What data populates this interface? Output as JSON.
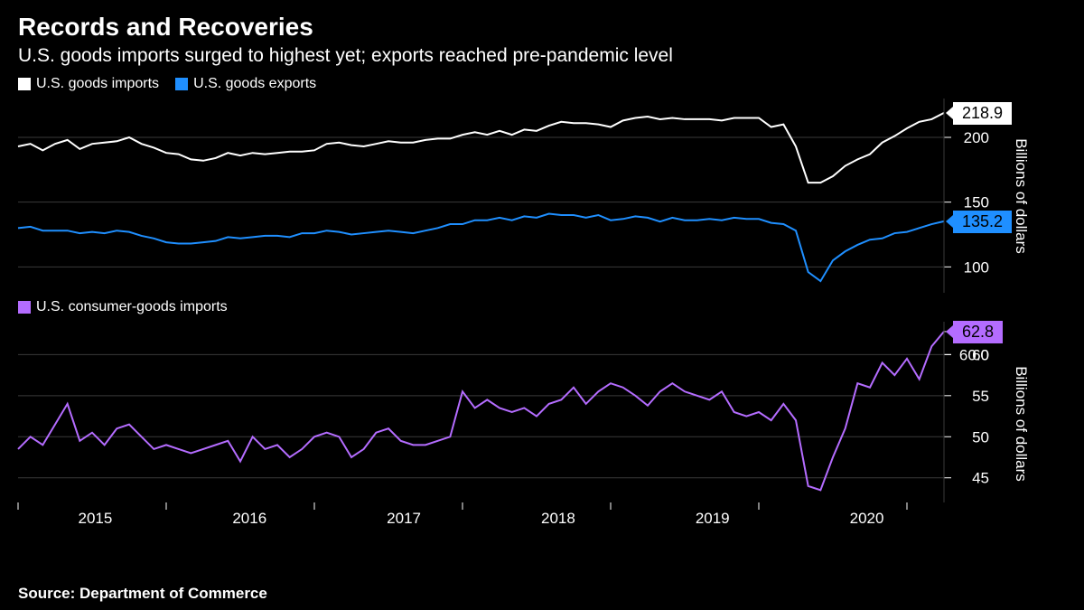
{
  "title": "Records and Recoveries",
  "subtitle": "U.S. goods imports surged to highest yet; exports reached pre-pandemic level",
  "source": "Source: Department of Commerce",
  "colors": {
    "background": "#000000",
    "text": "#ffffff",
    "grid": "#3a3a3a",
    "tick": "#ffffff"
  },
  "x_axis": {
    "labels": [
      "2015",
      "2016",
      "2017",
      "2018",
      "2019",
      "2020"
    ],
    "tick_positions": [
      0,
      12,
      24,
      36,
      48,
      60,
      72
    ]
  },
  "panel1": {
    "legend": [
      {
        "label": "U.S. goods imports",
        "color": "#ffffff"
      },
      {
        "label": "U.S. goods exports",
        "color": "#1f8fff"
      }
    ],
    "y_axis": {
      "title": "Billions of dollars",
      "min": 80,
      "max": 230,
      "ticks": [
        100,
        150,
        200
      ]
    },
    "series": [
      {
        "name": "imports",
        "color": "#ffffff",
        "width": 2,
        "endpoint_label": "218.9",
        "values": [
          193,
          195,
          190,
          195,
          198,
          191,
          195,
          196,
          197,
          200,
          195,
          192,
          188,
          187,
          183,
          182,
          184,
          188,
          186,
          188,
          187,
          188,
          189,
          189,
          190,
          195,
          196,
          194,
          193,
          195,
          197,
          196,
          196,
          198,
          199,
          199,
          202,
          204,
          202,
          205,
          202,
          206,
          205,
          209,
          212,
          211,
          211,
          210,
          208,
          213,
          215,
          216,
          214,
          215,
          214,
          214,
          214,
          213,
          215,
          215,
          215,
          208,
          210,
          193,
          165,
          165,
          170,
          178,
          183,
          187,
          196,
          201,
          207,
          212,
          214,
          218.9
        ]
      },
      {
        "name": "exports",
        "color": "#1f8fff",
        "width": 2,
        "endpoint_label": "135.2",
        "values": [
          130,
          131,
          128,
          128,
          128,
          126,
          127,
          126,
          128,
          127,
          124,
          122,
          119,
          118,
          118,
          119,
          120,
          123,
          122,
          123,
          124,
          124,
          123,
          126,
          126,
          128,
          127,
          125,
          126,
          127,
          128,
          127,
          126,
          128,
          130,
          133,
          133,
          136,
          136,
          138,
          136,
          139,
          138,
          141,
          140,
          140,
          138,
          140,
          136,
          137,
          139,
          138,
          135,
          138,
          136,
          136,
          137,
          136,
          138,
          137,
          137,
          134,
          133,
          128,
          96,
          89,
          105,
          112,
          117,
          121,
          122,
          126,
          127,
          130,
          133,
          135.2
        ]
      }
    ]
  },
  "panel2": {
    "legend": [
      {
        "label": "U.S. consumer-goods imports",
        "color": "#b46cff"
      }
    ],
    "y_axis": {
      "title": "Billions of dollars",
      "min": 42,
      "max": 64,
      "ticks": [
        45,
        50,
        55,
        60
      ]
    },
    "endpoint_ticks": [
      60.0,
      62.8
    ],
    "series": [
      {
        "name": "consumer_goods",
        "color": "#b46cff",
        "width": 2,
        "endpoint_label": "62.8",
        "values": [
          48.5,
          50,
          49,
          51.5,
          54,
          49.5,
          50.5,
          49,
          51,
          51.5,
          50,
          48.5,
          49,
          48.5,
          48,
          48.5,
          49,
          49.5,
          47,
          50,
          48.5,
          49,
          47.5,
          48.5,
          50,
          50.5,
          50,
          47.5,
          48.5,
          50.5,
          51,
          49.5,
          49,
          49,
          49.5,
          50,
          55.5,
          53.5,
          54.5,
          53.5,
          53,
          53.5,
          52.5,
          54,
          54.5,
          56,
          54,
          55.5,
          56.5,
          56,
          55,
          53.8,
          55.5,
          56.5,
          55.5,
          55,
          54.5,
          55.5,
          53,
          52.5,
          53,
          52,
          54,
          52,
          44,
          43.5,
          47.5,
          51,
          56.5,
          56,
          59,
          57.5,
          59.5,
          57,
          61,
          62.8
        ]
      }
    ]
  }
}
